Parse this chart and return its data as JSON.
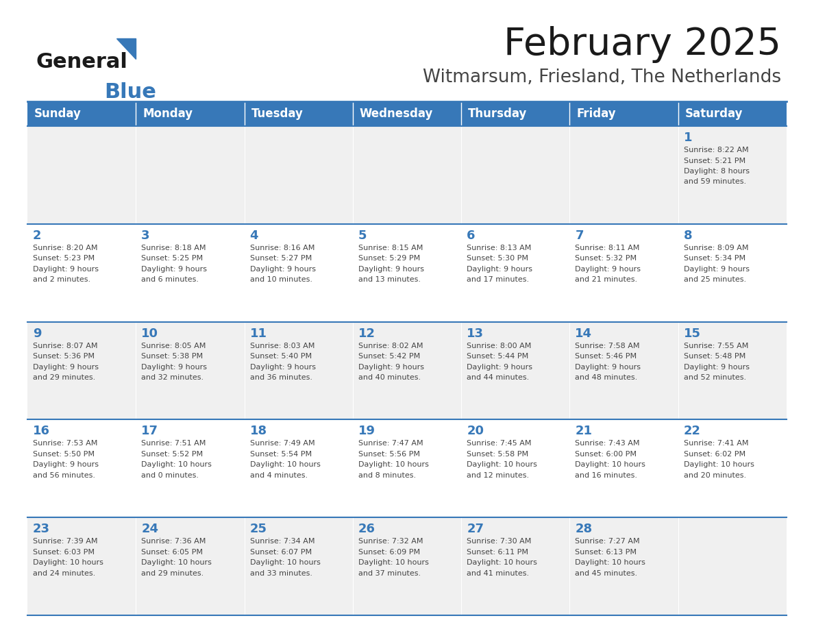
{
  "title": "February 2025",
  "subtitle": "Witmarsum, Friesland, The Netherlands",
  "days_of_week": [
    "Sunday",
    "Monday",
    "Tuesday",
    "Wednesday",
    "Thursday",
    "Friday",
    "Saturday"
  ],
  "header_bg": "#3778b8",
  "header_text": "#ffffff",
  "row_bg_odd": "#f0f0f0",
  "row_bg_even": "#ffffff",
  "border_color": "#3778b8",
  "day_num_color": "#3778b8",
  "text_color": "#444444",
  "title_color": "#1a1a1a",
  "subtitle_color": "#444444",
  "logo_general_color": "#1a1a1a",
  "logo_blue_color": "#3778b8",
  "logo_triangle_color": "#3778b8",
  "weeks": [
    [
      {
        "day": null,
        "info": ""
      },
      {
        "day": null,
        "info": ""
      },
      {
        "day": null,
        "info": ""
      },
      {
        "day": null,
        "info": ""
      },
      {
        "day": null,
        "info": ""
      },
      {
        "day": null,
        "info": ""
      },
      {
        "day": 1,
        "info": "Sunrise: 8:22 AM\nSunset: 5:21 PM\nDaylight: 8 hours\nand 59 minutes."
      }
    ],
    [
      {
        "day": 2,
        "info": "Sunrise: 8:20 AM\nSunset: 5:23 PM\nDaylight: 9 hours\nand 2 minutes."
      },
      {
        "day": 3,
        "info": "Sunrise: 8:18 AM\nSunset: 5:25 PM\nDaylight: 9 hours\nand 6 minutes."
      },
      {
        "day": 4,
        "info": "Sunrise: 8:16 AM\nSunset: 5:27 PM\nDaylight: 9 hours\nand 10 minutes."
      },
      {
        "day": 5,
        "info": "Sunrise: 8:15 AM\nSunset: 5:29 PM\nDaylight: 9 hours\nand 13 minutes."
      },
      {
        "day": 6,
        "info": "Sunrise: 8:13 AM\nSunset: 5:30 PM\nDaylight: 9 hours\nand 17 minutes."
      },
      {
        "day": 7,
        "info": "Sunrise: 8:11 AM\nSunset: 5:32 PM\nDaylight: 9 hours\nand 21 minutes."
      },
      {
        "day": 8,
        "info": "Sunrise: 8:09 AM\nSunset: 5:34 PM\nDaylight: 9 hours\nand 25 minutes."
      }
    ],
    [
      {
        "day": 9,
        "info": "Sunrise: 8:07 AM\nSunset: 5:36 PM\nDaylight: 9 hours\nand 29 minutes."
      },
      {
        "day": 10,
        "info": "Sunrise: 8:05 AM\nSunset: 5:38 PM\nDaylight: 9 hours\nand 32 minutes."
      },
      {
        "day": 11,
        "info": "Sunrise: 8:03 AM\nSunset: 5:40 PM\nDaylight: 9 hours\nand 36 minutes."
      },
      {
        "day": 12,
        "info": "Sunrise: 8:02 AM\nSunset: 5:42 PM\nDaylight: 9 hours\nand 40 minutes."
      },
      {
        "day": 13,
        "info": "Sunrise: 8:00 AM\nSunset: 5:44 PM\nDaylight: 9 hours\nand 44 minutes."
      },
      {
        "day": 14,
        "info": "Sunrise: 7:58 AM\nSunset: 5:46 PM\nDaylight: 9 hours\nand 48 minutes."
      },
      {
        "day": 15,
        "info": "Sunrise: 7:55 AM\nSunset: 5:48 PM\nDaylight: 9 hours\nand 52 minutes."
      }
    ],
    [
      {
        "day": 16,
        "info": "Sunrise: 7:53 AM\nSunset: 5:50 PM\nDaylight: 9 hours\nand 56 minutes."
      },
      {
        "day": 17,
        "info": "Sunrise: 7:51 AM\nSunset: 5:52 PM\nDaylight: 10 hours\nand 0 minutes."
      },
      {
        "day": 18,
        "info": "Sunrise: 7:49 AM\nSunset: 5:54 PM\nDaylight: 10 hours\nand 4 minutes."
      },
      {
        "day": 19,
        "info": "Sunrise: 7:47 AM\nSunset: 5:56 PM\nDaylight: 10 hours\nand 8 minutes."
      },
      {
        "day": 20,
        "info": "Sunrise: 7:45 AM\nSunset: 5:58 PM\nDaylight: 10 hours\nand 12 minutes."
      },
      {
        "day": 21,
        "info": "Sunrise: 7:43 AM\nSunset: 6:00 PM\nDaylight: 10 hours\nand 16 minutes."
      },
      {
        "day": 22,
        "info": "Sunrise: 7:41 AM\nSunset: 6:02 PM\nDaylight: 10 hours\nand 20 minutes."
      }
    ],
    [
      {
        "day": 23,
        "info": "Sunrise: 7:39 AM\nSunset: 6:03 PM\nDaylight: 10 hours\nand 24 minutes."
      },
      {
        "day": 24,
        "info": "Sunrise: 7:36 AM\nSunset: 6:05 PM\nDaylight: 10 hours\nand 29 minutes."
      },
      {
        "day": 25,
        "info": "Sunrise: 7:34 AM\nSunset: 6:07 PM\nDaylight: 10 hours\nand 33 minutes."
      },
      {
        "day": 26,
        "info": "Sunrise: 7:32 AM\nSunset: 6:09 PM\nDaylight: 10 hours\nand 37 minutes."
      },
      {
        "day": 27,
        "info": "Sunrise: 7:30 AM\nSunset: 6:11 PM\nDaylight: 10 hours\nand 41 minutes."
      },
      {
        "day": 28,
        "info": "Sunrise: 7:27 AM\nSunset: 6:13 PM\nDaylight: 10 hours\nand 45 minutes."
      },
      {
        "day": null,
        "info": ""
      }
    ]
  ],
  "fig_width": 11.88,
  "fig_height": 9.18,
  "dpi": 100
}
